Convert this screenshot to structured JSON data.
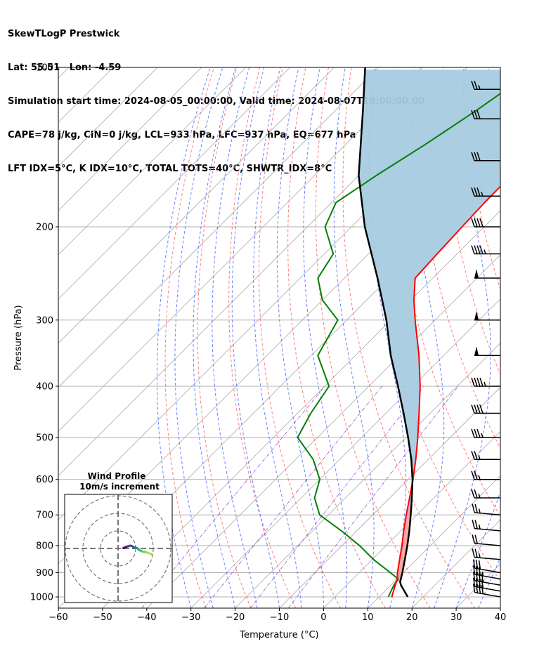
{
  "header": {
    "title": "SkewTLogP Prestwick",
    "location": "Lat: 55.51   Lon: -4.59",
    "times": "Simulation start time: 2024-08-05_00:00:00, Valid time: 2024-08-07T18:00:00.00",
    "params": "CAPE=78 j/kg, CIN=0 j/kg, LCL=933 hPa, LFC=937 hPa, EQ=677 hPa",
    "indices": "LFT IDX=5°C, K IDX=10°C, TOTAL TOTS=40°C, SHWTR_IDX=8°C"
  },
  "chart_data": {
    "type": "line",
    "title": "SkewTLogP Prestwick",
    "xlabel": "Temperature (°C)",
    "ylabel": "Pressure (hPa)",
    "xlim": [
      -60,
      40
    ],
    "ylim": [
      1050,
      100
    ],
    "yscale": "log",
    "skew": "45-degree isotherms",
    "grid": true,
    "x_ticks": [
      "−60",
      "−50",
      "−40",
      "−30",
      "−20",
      "−10",
      "0",
      "10",
      "20",
      "30",
      "40"
    ],
    "x_tick_values": [
      -60,
      -50,
      -40,
      -30,
      -20,
      -10,
      0,
      10,
      20,
      30,
      40
    ],
    "y_ticks": [
      100,
      200,
      300,
      400,
      500,
      600,
      700,
      800,
      900,
      1000
    ],
    "colors": {
      "temperature": "#ff0000",
      "dewpoint": "#008000",
      "parcel": "#000000",
      "cin_fill": "#a6cbe0",
      "cape_fill": "#f4a3a3",
      "dry_adiabat": "#ff6666",
      "moist_adiabat": "#4f6cff",
      "mixing_ratio": "#9933cc",
      "isotherm": "#aaaaaa"
    },
    "series": [
      {
        "key": "temperature",
        "pressure": [
          1000,
          950,
          925,
          900,
          850,
          800,
          750,
          700,
          650,
          600,
          550,
          500,
          450,
          400,
          350,
          300,
          275,
          250,
          225,
          200,
          180,
          160,
          140,
          120,
          100
        ],
        "values": [
          12.9,
          11.0,
          10.1,
          8.7,
          6.2,
          3.6,
          0.6,
          -2.4,
          -5.5,
          -8.9,
          -12.8,
          -17.3,
          -22.5,
          -28.4,
          -35.6,
          -44.5,
          -49.3,
          -54.0,
          -54.5,
          -55.0,
          -55.4,
          -55.5,
          -55.8,
          -56.0,
          -56.2
        ]
      },
      {
        "key": "dewpoint",
        "pressure": [
          1000,
          950,
          925,
          900,
          850,
          800,
          750,
          700,
          650,
          600,
          550,
          500,
          450,
          400,
          350,
          300,
          275,
          250,
          225,
          200,
          180,
          160,
          140,
          120,
          100
        ],
        "values": [
          12.1,
          10.7,
          10.3,
          7.1,
          0.3,
          -6.0,
          -13.5,
          -22.0,
          -27.0,
          -30.0,
          -36.0,
          -44.5,
          -47.0,
          -49.0,
          -58.5,
          -62.0,
          -70.0,
          -76.0,
          -78.0,
          -86.0,
          -89.0,
          -86.0,
          -82.0,
          -78.0,
          -74.0
        ]
      },
      {
        "key": "parcel",
        "pressure": [
          1000,
          950,
          937,
          900,
          850,
          800,
          750,
          700,
          677,
          650,
          600,
          550,
          500,
          450,
          400,
          350,
          300,
          250,
          200,
          160,
          120,
          100
        ],
        "values": [
          16.5,
          12.3,
          11.4,
          9.8,
          7.4,
          4.8,
          1.9,
          -1.4,
          -3.0,
          -5.0,
          -9.0,
          -13.8,
          -19.5,
          -26.0,
          -33.4,
          -42.0,
          -51.0,
          -62.5,
          -77.0,
          -90.0,
          -104.0,
          -113.0
        ]
      }
    ],
    "annotations": {
      "cape_region": [
        937,
        677
      ],
      "cin_region": [
        677,
        100
      ]
    },
    "wind_barbs": [
      {
        "pressure": 1000,
        "speed_kt": 40,
        "dir": 260
      },
      {
        "pressure": 975,
        "speed_kt": 40,
        "dir": 260
      },
      {
        "pressure": 950,
        "speed_kt": 40,
        "dir": 260
      },
      {
        "pressure": 925,
        "speed_kt": 35,
        "dir": 260
      },
      {
        "pressure": 900,
        "speed_kt": 30,
        "dir": 260
      },
      {
        "pressure": 850,
        "speed_kt": 25,
        "dir": 265
      },
      {
        "pressure": 800,
        "speed_kt": 20,
        "dir": 265
      },
      {
        "pressure": 750,
        "speed_kt": 25,
        "dir": 265
      },
      {
        "pressure": 700,
        "speed_kt": 25,
        "dir": 265
      },
      {
        "pressure": 650,
        "speed_kt": 25,
        "dir": 270
      },
      {
        "pressure": 600,
        "speed_kt": 25,
        "dir": 270
      },
      {
        "pressure": 550,
        "speed_kt": 25,
        "dir": 270
      },
      {
        "pressure": 500,
        "speed_kt": 35,
        "dir": 270
      },
      {
        "pressure": 450,
        "speed_kt": 40,
        "dir": 270
      },
      {
        "pressure": 400,
        "speed_kt": 45,
        "dir": 270
      },
      {
        "pressure": 350,
        "speed_kt": 50,
        "dir": 270
      },
      {
        "pressure": 300,
        "speed_kt": 50,
        "dir": 270
      },
      {
        "pressure": 250,
        "speed_kt": 50,
        "dir": 270
      },
      {
        "pressure": 225,
        "speed_kt": 45,
        "dir": 270
      },
      {
        "pressure": 200,
        "speed_kt": 40,
        "dir": 270
      },
      {
        "pressure": 175,
        "speed_kt": 35,
        "dir": 270
      },
      {
        "pressure": 150,
        "speed_kt": 30,
        "dir": 270
      },
      {
        "pressure": 125,
        "speed_kt": 30,
        "dir": 270
      },
      {
        "pressure": 110,
        "speed_kt": 25,
        "dir": 270
      }
    ],
    "inset": {
      "title": "Wind Profile",
      "subtitle": "10m/s increment",
      "rings_ms": [
        10,
        20,
        30
      ],
      "hodograph_u": [
        19,
        18.5,
        17,
        15.5,
        14,
        13,
        12,
        11.5,
        11,
        10.5,
        10,
        9.5,
        9,
        8.5,
        8,
        7,
        6,
        5,
        4.5,
        4,
        3.5,
        3
      ],
      "hodograph_v": [
        -3.5,
        -3,
        -2.5,
        -2,
        -1.8,
        -1.3,
        -0.9,
        -0.3,
        0.1,
        0.3,
        0.4,
        0.7,
        0.5,
        0.9,
        1.3,
        1.6,
        1.3,
        1.1,
        0.8,
        0.6,
        0.4,
        0.2
      ],
      "colors": [
        "#b5de2b",
        "#6ece58",
        "#35b779",
        "#1f9e89",
        "#26828e",
        "#31688e",
        "#3e4989",
        "#482878",
        "#440154"
      ]
    }
  }
}
